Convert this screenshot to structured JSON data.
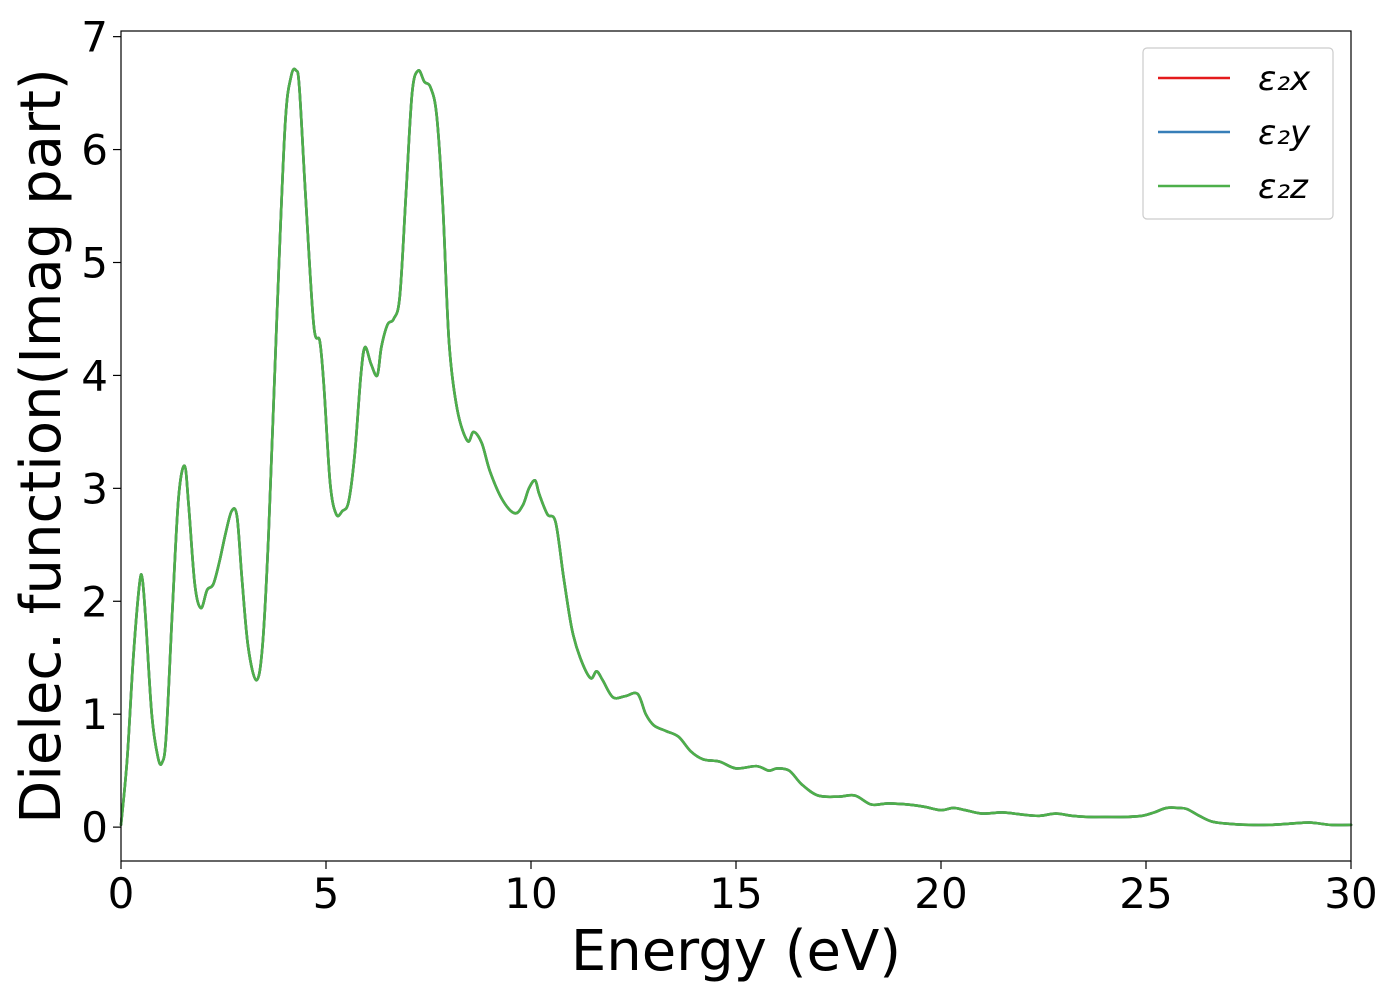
{
  "chart_data": {
    "type": "line",
    "title": "",
    "xlabel": "Energy (eV)",
    "ylabel": "Dielec. function(Imag part)",
    "xlim": [
      0,
      30
    ],
    "ylim": [
      -0.3,
      7.05
    ],
    "xticks": [
      0,
      5,
      10,
      15,
      20,
      25,
      30
    ],
    "yticks": [
      0,
      1,
      2,
      3,
      4,
      5,
      6,
      7
    ],
    "xtick_labels": [
      "0",
      "5",
      "10",
      "15",
      "20",
      "25",
      "30"
    ],
    "ytick_labels": [
      "0",
      "1",
      "2",
      "3",
      "4",
      "5",
      "6",
      "7"
    ],
    "grid": false,
    "legend_position": "top-right",
    "series": [
      {
        "name": "ε₂x",
        "color": "#e41a1c",
        "x": [
          0,
          0.15,
          0.3,
          0.45,
          0.52,
          0.6,
          0.75,
          0.9,
          1.0,
          1.1,
          1.25,
          1.4,
          1.55,
          1.65,
          1.8,
          1.95,
          2.1,
          2.25,
          2.4,
          2.55,
          2.7,
          2.83,
          2.95,
          3.1,
          3.3,
          3.45,
          3.6,
          3.8,
          4.0,
          4.15,
          4.27,
          4.35,
          4.5,
          4.7,
          4.85,
          4.95,
          5.1,
          5.25,
          5.4,
          5.55,
          5.7,
          5.85,
          5.95,
          6.1,
          6.25,
          6.35,
          6.5,
          6.65,
          6.8,
          6.95,
          7.1,
          7.25,
          7.4,
          7.55,
          7.7,
          7.85,
          8.0,
          8.2,
          8.45,
          8.6,
          8.8,
          9.0,
          9.3,
          9.6,
          9.8,
          9.95,
          10.1,
          10.2,
          10.4,
          10.6,
          10.8,
          11.0,
          11.2,
          11.45,
          11.6,
          11.75,
          12.0,
          12.3,
          12.6,
          12.8,
          13.0,
          13.3,
          13.6,
          13.9,
          14.2,
          14.6,
          15.0,
          15.5,
          15.8,
          16.0,
          16.3,
          16.6,
          17.0,
          17.5,
          17.9,
          18.3,
          18.7,
          19.2,
          19.6,
          20.0,
          20.3,
          20.6,
          21.0,
          21.5,
          22.0,
          22.4,
          22.8,
          23.2,
          23.6,
          24.0,
          24.5,
          24.9,
          25.2,
          25.5,
          25.8,
          26.0,
          26.3,
          26.6,
          27.0,
          27.5,
          28.0,
          28.5,
          29.0,
          29.5,
          30.0
        ],
        "values": [
          0.02,
          0.6,
          1.5,
          2.15,
          2.2,
          1.85,
          1.0,
          0.62,
          0.57,
          0.8,
          1.9,
          2.9,
          3.2,
          2.85,
          2.15,
          1.94,
          2.1,
          2.15,
          2.35,
          2.6,
          2.8,
          2.75,
          2.2,
          1.6,
          1.3,
          1.6,
          2.6,
          4.5,
          6.2,
          6.65,
          6.7,
          6.55,
          5.6,
          4.45,
          4.3,
          3.9,
          3.05,
          2.77,
          2.8,
          2.88,
          3.3,
          4.0,
          4.25,
          4.1,
          4.0,
          4.25,
          4.45,
          4.5,
          4.7,
          5.6,
          6.5,
          6.7,
          6.6,
          6.55,
          6.3,
          5.5,
          4.3,
          3.7,
          3.42,
          3.5,
          3.4,
          3.15,
          2.9,
          2.78,
          2.85,
          3.0,
          3.07,
          2.95,
          2.77,
          2.7,
          2.2,
          1.75,
          1.5,
          1.32,
          1.38,
          1.3,
          1.15,
          1.16,
          1.18,
          1.0,
          0.9,
          0.85,
          0.8,
          0.67,
          0.6,
          0.58,
          0.52,
          0.54,
          0.5,
          0.52,
          0.5,
          0.38,
          0.28,
          0.27,
          0.28,
          0.2,
          0.21,
          0.2,
          0.18,
          0.15,
          0.17,
          0.15,
          0.12,
          0.13,
          0.11,
          0.1,
          0.12,
          0.1,
          0.09,
          0.09,
          0.09,
          0.1,
          0.13,
          0.17,
          0.17,
          0.16,
          0.1,
          0.05,
          0.03,
          0.02,
          0.02,
          0.03,
          0.04,
          0.02,
          0.02
        ]
      },
      {
        "name": "ε₂y",
        "color": "#377eb8",
        "x": [
          0,
          0.15,
          0.3,
          0.45,
          0.52,
          0.6,
          0.75,
          0.9,
          1.0,
          1.1,
          1.25,
          1.4,
          1.55,
          1.65,
          1.8,
          1.95,
          2.1,
          2.25,
          2.4,
          2.55,
          2.7,
          2.83,
          2.95,
          3.1,
          3.3,
          3.45,
          3.6,
          3.8,
          4.0,
          4.15,
          4.27,
          4.35,
          4.5,
          4.7,
          4.85,
          4.95,
          5.1,
          5.25,
          5.4,
          5.55,
          5.7,
          5.85,
          5.95,
          6.1,
          6.25,
          6.35,
          6.5,
          6.65,
          6.8,
          6.95,
          7.1,
          7.25,
          7.4,
          7.55,
          7.7,
          7.85,
          8.0,
          8.2,
          8.45,
          8.6,
          8.8,
          9.0,
          9.3,
          9.6,
          9.8,
          9.95,
          10.1,
          10.2,
          10.4,
          10.6,
          10.8,
          11.0,
          11.2,
          11.45,
          11.6,
          11.75,
          12.0,
          12.3,
          12.6,
          12.8,
          13.0,
          13.3,
          13.6,
          13.9,
          14.2,
          14.6,
          15.0,
          15.5,
          15.8,
          16.0,
          16.3,
          16.6,
          17.0,
          17.5,
          17.9,
          18.3,
          18.7,
          19.2,
          19.6,
          20.0,
          20.3,
          20.6,
          21.0,
          21.5,
          22.0,
          22.4,
          22.8,
          23.2,
          23.6,
          24.0,
          24.5,
          24.9,
          25.2,
          25.5,
          25.8,
          26.0,
          26.3,
          26.6,
          27.0,
          27.5,
          28.0,
          28.5,
          29.0,
          29.5,
          30.0
        ],
        "values": [
          0.02,
          0.6,
          1.5,
          2.15,
          2.2,
          1.85,
          1.0,
          0.62,
          0.57,
          0.8,
          1.9,
          2.9,
          3.2,
          2.85,
          2.15,
          1.94,
          2.1,
          2.15,
          2.35,
          2.6,
          2.8,
          2.75,
          2.2,
          1.6,
          1.3,
          1.6,
          2.6,
          4.5,
          6.2,
          6.65,
          6.7,
          6.55,
          5.6,
          4.45,
          4.3,
          3.9,
          3.05,
          2.77,
          2.8,
          2.88,
          3.3,
          4.0,
          4.25,
          4.1,
          4.0,
          4.25,
          4.45,
          4.5,
          4.7,
          5.6,
          6.5,
          6.7,
          6.6,
          6.55,
          6.3,
          5.5,
          4.3,
          3.7,
          3.42,
          3.5,
          3.4,
          3.15,
          2.9,
          2.78,
          2.85,
          3.0,
          3.07,
          2.95,
          2.77,
          2.7,
          2.2,
          1.75,
          1.5,
          1.32,
          1.38,
          1.3,
          1.15,
          1.16,
          1.18,
          1.0,
          0.9,
          0.85,
          0.8,
          0.67,
          0.6,
          0.58,
          0.52,
          0.54,
          0.5,
          0.52,
          0.5,
          0.38,
          0.28,
          0.27,
          0.28,
          0.2,
          0.21,
          0.2,
          0.18,
          0.15,
          0.17,
          0.15,
          0.12,
          0.13,
          0.11,
          0.1,
          0.12,
          0.1,
          0.09,
          0.09,
          0.09,
          0.1,
          0.13,
          0.17,
          0.17,
          0.16,
          0.1,
          0.05,
          0.03,
          0.02,
          0.02,
          0.03,
          0.04,
          0.02,
          0.02
        ]
      },
      {
        "name": "ε₂z",
        "color": "#4daf4a",
        "x": [
          0,
          0.15,
          0.3,
          0.45,
          0.52,
          0.6,
          0.75,
          0.9,
          1.0,
          1.1,
          1.25,
          1.4,
          1.55,
          1.65,
          1.8,
          1.95,
          2.1,
          2.25,
          2.4,
          2.55,
          2.7,
          2.83,
          2.95,
          3.1,
          3.3,
          3.45,
          3.6,
          3.8,
          4.0,
          4.15,
          4.27,
          4.35,
          4.5,
          4.7,
          4.85,
          4.95,
          5.1,
          5.25,
          5.4,
          5.55,
          5.7,
          5.85,
          5.95,
          6.1,
          6.25,
          6.35,
          6.5,
          6.65,
          6.8,
          6.95,
          7.1,
          7.25,
          7.4,
          7.55,
          7.7,
          7.85,
          8.0,
          8.2,
          8.45,
          8.6,
          8.8,
          9.0,
          9.3,
          9.6,
          9.8,
          9.95,
          10.1,
          10.2,
          10.4,
          10.6,
          10.8,
          11.0,
          11.2,
          11.45,
          11.6,
          11.75,
          12.0,
          12.3,
          12.6,
          12.8,
          13.0,
          13.3,
          13.6,
          13.9,
          14.2,
          14.6,
          15.0,
          15.5,
          15.8,
          16.0,
          16.3,
          16.6,
          17.0,
          17.5,
          17.9,
          18.3,
          18.7,
          19.2,
          19.6,
          20.0,
          20.3,
          20.6,
          21.0,
          21.5,
          22.0,
          22.4,
          22.8,
          23.2,
          23.6,
          24.0,
          24.5,
          24.9,
          25.2,
          25.5,
          25.8,
          26.0,
          26.3,
          26.6,
          27.0,
          27.5,
          28.0,
          28.5,
          29.0,
          29.5,
          30.0
        ],
        "values": [
          0.02,
          0.6,
          1.5,
          2.15,
          2.2,
          1.85,
          1.0,
          0.62,
          0.57,
          0.8,
          1.9,
          2.9,
          3.2,
          2.85,
          2.15,
          1.94,
          2.1,
          2.15,
          2.35,
          2.6,
          2.8,
          2.75,
          2.2,
          1.6,
          1.3,
          1.6,
          2.6,
          4.5,
          6.2,
          6.65,
          6.7,
          6.55,
          5.6,
          4.45,
          4.3,
          3.9,
          3.05,
          2.77,
          2.8,
          2.88,
          3.3,
          4.0,
          4.25,
          4.1,
          4.0,
          4.25,
          4.45,
          4.5,
          4.7,
          5.6,
          6.5,
          6.7,
          6.6,
          6.55,
          6.3,
          5.5,
          4.3,
          3.7,
          3.42,
          3.5,
          3.4,
          3.15,
          2.9,
          2.78,
          2.85,
          3.0,
          3.07,
          2.95,
          2.77,
          2.7,
          2.2,
          1.75,
          1.5,
          1.32,
          1.38,
          1.3,
          1.15,
          1.16,
          1.18,
          1.0,
          0.9,
          0.85,
          0.8,
          0.67,
          0.6,
          0.58,
          0.52,
          0.54,
          0.5,
          0.52,
          0.5,
          0.38,
          0.28,
          0.27,
          0.28,
          0.2,
          0.21,
          0.2,
          0.18,
          0.15,
          0.17,
          0.15,
          0.12,
          0.13,
          0.11,
          0.1,
          0.12,
          0.1,
          0.09,
          0.09,
          0.09,
          0.1,
          0.13,
          0.17,
          0.17,
          0.16,
          0.1,
          0.05,
          0.03,
          0.02,
          0.02,
          0.03,
          0.04,
          0.02,
          0.02
        ]
      }
    ]
  }
}
